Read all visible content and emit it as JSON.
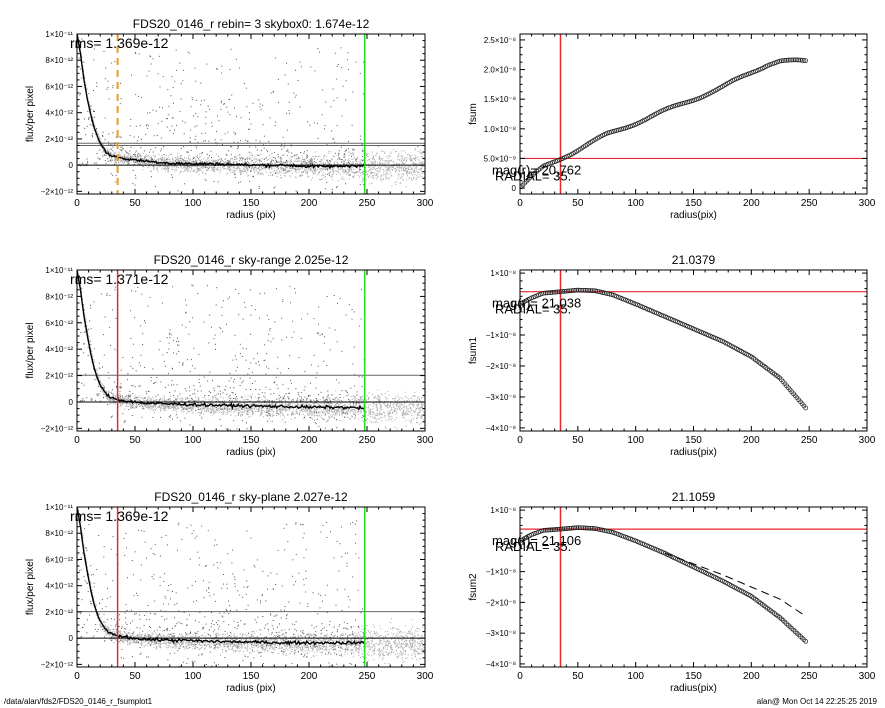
{
  "footer": {
    "left": "/data/alan/fds2/FDS20_0146_r_fsumplot1",
    "right": "alan@  Mon Oct 14 22:25:25 2019"
  },
  "colors": {
    "axis": "#000000",
    "scatter_dark": "#555555",
    "scatter_light": "#aaaaaa",
    "profile": "#000000",
    "red": "#e8262b",
    "green": "#22dd22",
    "orange": "#ee9922",
    "gray_line": "#666666"
  },
  "chart_data": [
    {
      "type": "scatter",
      "title": "FDS20_0146_r rebin= 3    skybox0:  1.674e-12",
      "xlabel": "radius (pix)",
      "ylabel": "flux/per pixel",
      "xlim": [
        0,
        300
      ],
      "ylim": [
        -2.2e-12,
        1e-11
      ],
      "xticks": [
        0,
        50,
        100,
        150,
        200,
        250,
        300
      ],
      "xtick_labels": [
        "0",
        "50",
        "100",
        "150",
        "200",
        "250",
        "300"
      ],
      "yticks": [
        -2e-12,
        0,
        2e-12,
        4e-12,
        6e-12,
        8e-12,
        1e-11
      ],
      "ytick_labels": [
        "−2×10⁻¹²",
        "0",
        "2×10⁻¹²",
        "4×10⁻¹²",
        "6×10⁻¹²",
        "8×10⁻¹²",
        "1×10⁻¹¹"
      ],
      "annotation": "rms= 1.369e-12",
      "hlines": [
        0,
        1.674e-12,
        1.5e-12
      ],
      "vlines": [
        {
          "x": 35,
          "color": "orange",
          "dashed": true
        },
        {
          "x": 248,
          "color": "green",
          "dashed": false
        }
      ],
      "profile": {
        "x": [
          0,
          3,
          6,
          9,
          12,
          15,
          18,
          21,
          25,
          30,
          35,
          40,
          50,
          60,
          80,
          100,
          120,
          150,
          180,
          200,
          220,
          248
        ],
        "y": [
          1e-11,
          8.5e-12,
          6.5e-12,
          5e-12,
          3.8e-12,
          2.8e-12,
          2.1e-12,
          1.5e-12,
          1e-12,
          7e-13,
          6e-13,
          5e-13,
          4e-13,
          3e-13,
          1.5e-13,
          1e-13,
          1e-13,
          0,
          0,
          -1e-13,
          -1e-13,
          0
        ]
      },
      "scatter_x_max": 300
    },
    {
      "type": "line",
      "title": "",
      "xlabel": "radius(pix)",
      "ylabel": "fsum",
      "xlim": [
        0,
        300
      ],
      "ylim": [
        -1e-09,
        2.6e-08
      ],
      "xticks": [
        0,
        50,
        100,
        150,
        200,
        250,
        300
      ],
      "xtick_labels": [
        "0",
        "50",
        "100",
        "150",
        "200",
        "250",
        "300"
      ],
      "yticks": [
        0,
        5e-09,
        1e-08,
        1.5e-08,
        2e-08,
        2.5e-08
      ],
      "ytick_labels": [
        "0",
        "5.0×10⁻⁹",
        "1.0×10⁻⁸",
        "1.5×10⁻⁸",
        "2.0×10⁻⁸",
        "2.5×10⁻⁸"
      ],
      "annotations": [
        "mag(r)=  20.762",
        "RADIAL=   35."
      ],
      "hline": 5e-09,
      "vline": 35,
      "series": [
        {
          "x": [
            0,
            10,
            20,
            35,
            50,
            75,
            100,
            125,
            150,
            175,
            200,
            215,
            225,
            248
          ],
          "y": [
            0,
            1.8e-09,
            3.5e-09,
            5e-09,
            6.5e-09,
            9e-09,
            1.1e-08,
            1.3e-08,
            1.5e-08,
            1.7e-08,
            1.95e-08,
            2.1e-08,
            2.15e-08,
            2.13e-08
          ]
        }
      ]
    },
    {
      "type": "scatter",
      "title": "FDS20_0146_r sky-range  2.025e-12",
      "xlabel": "radius (pix)",
      "ylabel": "flux/per pixel",
      "xlim": [
        0,
        300
      ],
      "ylim": [
        -2.2e-12,
        1e-11
      ],
      "xticks": [
        0,
        50,
        100,
        150,
        200,
        250,
        300
      ],
      "xtick_labels": [
        "0",
        "50",
        "100",
        "150",
        "200",
        "250",
        "300"
      ],
      "yticks": [
        -2e-12,
        0,
        2e-12,
        4e-12,
        6e-12,
        8e-12,
        1e-11
      ],
      "ytick_labels": [
        "−2×10⁻¹²",
        "0",
        "2×10⁻¹²",
        "4×10⁻¹²",
        "6×10⁻¹²",
        "8×10⁻¹²",
        "1×10⁻¹¹"
      ],
      "annotation": "rms= 1.371e-12",
      "hlines": [
        0,
        2.025e-12
      ],
      "vlines": [
        {
          "x": 35,
          "color": "red",
          "dashed": false
        },
        {
          "x": 248,
          "color": "green",
          "dashed": false
        }
      ],
      "profile": {
        "x": [
          0,
          3,
          6,
          9,
          12,
          15,
          18,
          21,
          25,
          30,
          35,
          40,
          50,
          60,
          80,
          100,
          120,
          150,
          180,
          200,
          220,
          248
        ],
        "y": [
          1e-11,
          8.5e-12,
          6.5e-12,
          5e-12,
          3.6e-12,
          2.5e-12,
          1.7e-12,
          1.1e-12,
          6e-13,
          3e-13,
          2e-13,
          1e-13,
          0,
          -1e-13,
          -1.5e-13,
          -2e-13,
          -2.5e-13,
          -3e-13,
          -3.5e-13,
          -4e-13,
          -4e-13,
          -4.5e-13
        ]
      },
      "scatter_x_max": 300
    },
    {
      "type": "line",
      "title": "21.0379",
      "xlabel": "radius(pix)",
      "ylabel": "fsum1",
      "xlim": [
        0,
        300
      ],
      "ylim": [
        -4.1e-08,
        1.1e-08
      ],
      "xticks": [
        0,
        50,
        100,
        150,
        200,
        250,
        300
      ],
      "xtick_labels": [
        "0",
        "50",
        "100",
        "150",
        "200",
        "250",
        "300"
      ],
      "yticks": [
        -4e-08,
        -3e-08,
        -2e-08,
        -1e-08,
        0,
        1e-08
      ],
      "ytick_labels": [
        "−4×10⁻⁸",
        "−3×10⁻⁸",
        "−2×10⁻⁸",
        "−1×10⁻⁸",
        "0",
        "1×10⁻⁸"
      ],
      "annotations": [
        "mag(r)=  21.038",
        "RADIAL=   35."
      ],
      "hline": 4e-09,
      "vline": 35,
      "series": [
        {
          "x": [
            0,
            10,
            20,
            35,
            50,
            65,
            80,
            100,
            125,
            150,
            175,
            200,
            225,
            248
          ],
          "y": [
            0,
            2e-09,
            3.5e-09,
            4e-09,
            4.5e-09,
            4.3e-09,
            3e-09,
            0,
            -4e-09,
            -8e-09,
            -1.2e-08,
            -1.7e-08,
            -2.4e-08,
            -3.4e-08
          ]
        }
      ]
    },
    {
      "type": "scatter",
      "title": "FDS20_0146_r sky-plane  2.027e-12",
      "xlabel": "radius (pix)",
      "ylabel": "flux/per pixel",
      "xlim": [
        0,
        300
      ],
      "ylim": [
        -2.2e-12,
        1e-11
      ],
      "xticks": [
        0,
        50,
        100,
        150,
        200,
        250,
        300
      ],
      "xtick_labels": [
        "0",
        "50",
        "100",
        "150",
        "200",
        "250",
        "300"
      ],
      "yticks": [
        -2e-12,
        0,
        2e-12,
        4e-12,
        6e-12,
        8e-12,
        1e-11
      ],
      "ytick_labels": [
        "−2×10⁻¹²",
        "0",
        "2×10⁻¹²",
        "4×10⁻¹²",
        "6×10⁻¹²",
        "8×10⁻¹²",
        "1×10⁻¹¹"
      ],
      "annotation": "rms= 1.369e-12",
      "hlines": [
        0,
        2.027e-12
      ],
      "vlines": [
        {
          "x": 35,
          "color": "red",
          "dashed": false
        },
        {
          "x": 248,
          "color": "green",
          "dashed": false
        }
      ],
      "profile": {
        "x": [
          0,
          3,
          6,
          9,
          12,
          15,
          18,
          21,
          25,
          30,
          35,
          40,
          50,
          60,
          80,
          100,
          120,
          150,
          180,
          200,
          220,
          248
        ],
        "y": [
          1e-11,
          8.5e-12,
          6.5e-12,
          5e-12,
          3.6e-12,
          2.5e-12,
          1.7e-12,
          1.1e-12,
          6e-13,
          3e-13,
          2e-13,
          1e-13,
          0,
          -1e-13,
          -1.5e-13,
          -2e-13,
          -2.5e-13,
          -3e-13,
          -3.5e-13,
          -3.5e-13,
          -3.5e-13,
          -3.5e-13
        ]
      },
      "scatter_x_max": 300
    },
    {
      "type": "line",
      "title": "21.1059",
      "xlabel": "radius(pix)",
      "ylabel": "fsum2",
      "xlim": [
        0,
        300
      ],
      "ylim": [
        -4.1e-08,
        1.1e-08
      ],
      "xticks": [
        0,
        50,
        100,
        150,
        200,
        250,
        300
      ],
      "xtick_labels": [
        "0",
        "50",
        "100",
        "150",
        "200",
        "250",
        "300"
      ],
      "yticks": [
        -4e-08,
        -3e-08,
        -2e-08,
        -1e-08,
        0,
        1e-08
      ],
      "ytick_labels": [
        "−4×10⁻⁸",
        "−3×10⁻⁸",
        "−2×10⁻⁸",
        "−1×10⁻⁸",
        "0",
        "1×10⁻⁸"
      ],
      "annotations": [
        "mag(r)=  21.106",
        "RADIAL=   35."
      ],
      "hline": 3.8e-09,
      "vline": 35,
      "series": [
        {
          "x": [
            0,
            10,
            20,
            35,
            50,
            65,
            80,
            100,
            125,
            150,
            175,
            200,
            225,
            248
          ],
          "y": [
            0,
            2e-09,
            3.4e-09,
            3.8e-09,
            4.3e-09,
            4e-09,
            2.8e-09,
            0,
            -4e-09,
            -8.5e-09,
            -1.3e-08,
            -1.8e-08,
            -2.5e-08,
            -3.3e-08
          ]
        },
        {
          "x": [
            125,
            150,
            175,
            200,
            225,
            245
          ],
          "y": [
            -4e-09,
            -7.5e-09,
            -1.1e-08,
            -1.5e-08,
            -1.9e-08,
            -2.4e-08
          ],
          "dashed": true
        }
      ]
    }
  ]
}
